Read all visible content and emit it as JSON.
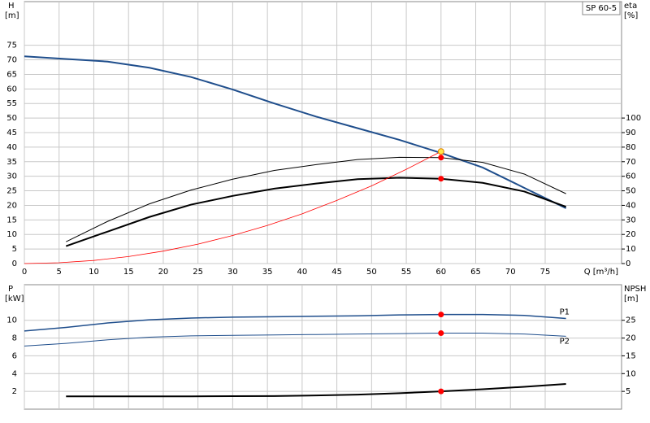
{
  "chart_data": [
    {
      "type": "line",
      "title": "SP 60-5",
      "ylabel": "H",
      "yunit": "[m]",
      "y2label": "eta",
      "y2unit": "[%]",
      "xlabel": "Q [m³/h]",
      "xlim": [
        0,
        86
      ],
      "xticks": [
        0,
        5,
        10,
        15,
        20,
        25,
        30,
        35,
        40,
        45,
        50,
        55,
        60,
        65,
        70,
        75
      ],
      "ylim": [
        0,
        90
      ],
      "yticks": [
        0,
        5,
        10,
        15,
        20,
        25,
        30,
        35,
        40,
        45,
        50,
        55,
        60,
        65,
        70,
        75
      ],
      "y2lim": [
        0,
        180
      ],
      "y2ticks": [
        0,
        10,
        20,
        30,
        40,
        50,
        60,
        70,
        80,
        90,
        100
      ],
      "grid": true,
      "show_xtick_labels": true,
      "series": [
        {
          "color": "#1f4e8c",
          "width": 2,
          "x": [
            0,
            6,
            12,
            18,
            24,
            30,
            36,
            42,
            48,
            54,
            60,
            66,
            72,
            78
          ],
          "values": [
            71.2,
            70.3,
            69.4,
            67.3,
            64.1,
            59.8,
            55,
            50.5,
            46.5,
            42.5,
            38,
            33,
            26,
            19
          ]
        },
        {
          "color": "#000000",
          "width": 1,
          "axis": "y2",
          "x": [
            6,
            12,
            18,
            24,
            30,
            36,
            42,
            48,
            54,
            60,
            66,
            72,
            78
          ],
          "values": [
            15,
            29,
            41,
            50.5,
            58,
            64,
            68,
            71.5,
            73,
            72.8,
            69.5,
            61.5,
            48
          ]
        },
        {
          "color": "#000000",
          "width": 2,
          "axis": "y2",
          "x": [
            6,
            12,
            18,
            24,
            30,
            36,
            42,
            48,
            54,
            60,
            66,
            72,
            78
          ],
          "values": [
            12,
            22,
            32,
            40.5,
            46.5,
            51.5,
            55,
            58,
            59,
            58.3,
            55.5,
            49.5,
            39
          ]
        },
        {
          "color": "#ff0000",
          "width": 0.8,
          "x": [
            0,
            5,
            10,
            15,
            20,
            25,
            30,
            35,
            40,
            45,
            50,
            55,
            60
          ],
          "values": [
            0,
            0.27,
            1.07,
            2.4,
            4.28,
            6.68,
            9.63,
            13.1,
            17.1,
            21.7,
            26.7,
            32.4,
            38.5
          ]
        },
        {
          "color": "#ff0000",
          "marker": "dot",
          "axis": "y2",
          "x": [
            60,
            60
          ],
          "values": [
            72.8,
            58.3
          ]
        },
        {
          "color": "#ffe84a",
          "marker": "dot",
          "x": [
            60
          ],
          "values": [
            38.5
          ]
        }
      ]
    },
    {
      "type": "line",
      "ylabel": "P",
      "yunit": "[kW]",
      "y2label": "NPSH",
      "y2unit": "[m]",
      "xlim": [
        0,
        86
      ],
      "xticks": [
        0,
        5,
        10,
        15,
        20,
        25,
        30,
        35,
        40,
        45,
        50,
        55,
        60,
        65,
        70,
        75
      ],
      "ylim": [
        0,
        14
      ],
      "yticks": [
        2,
        4,
        6,
        8,
        10
      ],
      "y2lim": [
        0,
        35
      ],
      "y2ticks": [
        5,
        10,
        15,
        20,
        25
      ],
      "grid": true,
      "show_xtick_labels": false,
      "series": [
        {
          "label": "P1",
          "color": "#1f4e8c",
          "width": 1.5,
          "x": [
            0,
            6,
            12,
            18,
            24,
            30,
            36,
            42,
            48,
            54,
            60,
            66,
            72,
            78
          ],
          "values": [
            8.8,
            9.2,
            9.7,
            10.05,
            10.25,
            10.35,
            10.4,
            10.45,
            10.5,
            10.6,
            10.65,
            10.65,
            10.55,
            10.2
          ]
        },
        {
          "label": "P2",
          "color": "#1f4e8c",
          "width": 1,
          "x": [
            0,
            6,
            12,
            18,
            24,
            30,
            36,
            42,
            48,
            54,
            60,
            66,
            72,
            78
          ],
          "values": [
            7.1,
            7.4,
            7.8,
            8.1,
            8.25,
            8.3,
            8.35,
            8.4,
            8.45,
            8.5,
            8.55,
            8.55,
            8.45,
            8.2
          ]
        },
        {
          "color": "#000000",
          "width": 2,
          "axis": "y2",
          "x": [
            6,
            12,
            18,
            24,
            30,
            36,
            42,
            48,
            54,
            60,
            66,
            72,
            78
          ],
          "values": [
            3.6,
            3.6,
            3.6,
            3.6,
            3.65,
            3.7,
            3.85,
            4.1,
            4.5,
            5.0,
            5.6,
            6.3,
            7.1
          ]
        },
        {
          "color": "#ff0000",
          "marker": "dot",
          "x": [
            60,
            60
          ],
          "values": [
            10.65,
            8.55
          ]
        },
        {
          "color": "#ff0000",
          "marker": "dot",
          "axis": "y2",
          "x": [
            60
          ],
          "values": [
            5.0
          ]
        }
      ]
    }
  ]
}
